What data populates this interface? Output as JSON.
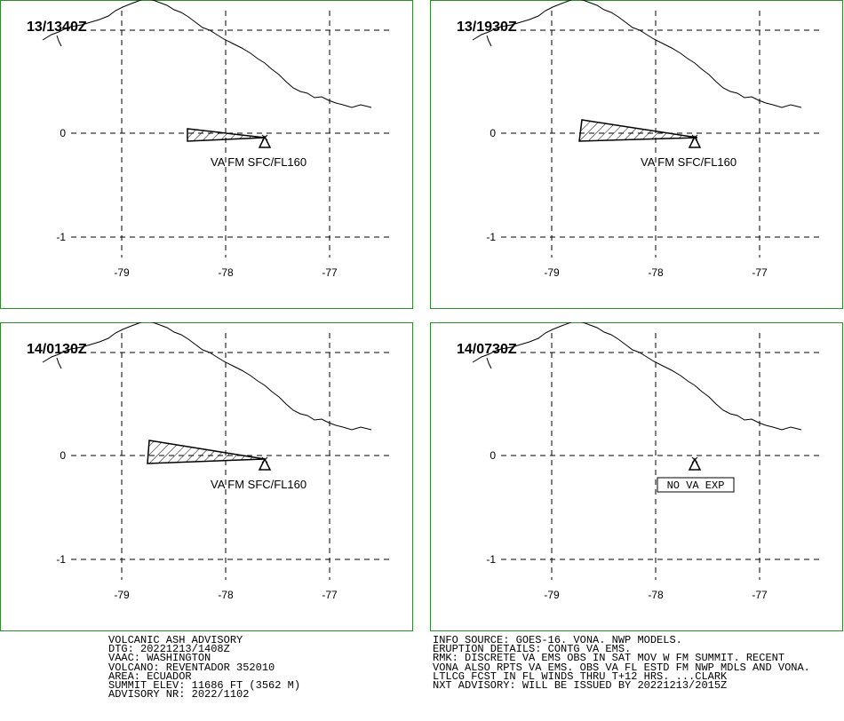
{
  "panels": [
    {
      "time": "13/1340Z",
      "annotation": "VA FM SFC/FL160"
    },
    {
      "time": "13/1930Z",
      "annotation": "VA FM SFC/FL160"
    },
    {
      "time": "14/0130Z",
      "annotation": "VA FM SFC/FL160"
    },
    {
      "time": "14/0730Z",
      "annotation": "NO VA EXP"
    }
  ],
  "lat_labels": [
    "0",
    "-1"
  ],
  "lon_labels": [
    "-79",
    "-78",
    "-77"
  ],
  "advisory_left": [
    "VOLCANIC ASH ADVISORY",
    "DTG: 20221213/1408Z",
    "VAAC: WASHINGTON",
    "VOLCANO: REVENTADOR 352010",
    "AREA: ECUADOR",
    "SUMMIT ELEV: 11686 FT (3562 M)",
    "ADVISORY NR: 2022/1102"
  ],
  "advisory_right": [
    "INFO SOURCE: GOES-16. VONA. NWP MODELS.",
    "ERUPTION DETAILS: CONTG VA EMS.",
    "RMK: DISCRETE VA EMS OBS IN SAT MOV W FM SUMMIT. RECENT",
    "VONA ALSO RPTS VA EMS. OBS VA FL ESTD FM NWP MDLS AND VONA.",
    "LTLCG FCST IN FL WINDS THRU T+12 HRS. ...CLARK",
    "NXT ADVISORY: WILL BE ISSUED BY 20221213/2015Z"
  ]
}
